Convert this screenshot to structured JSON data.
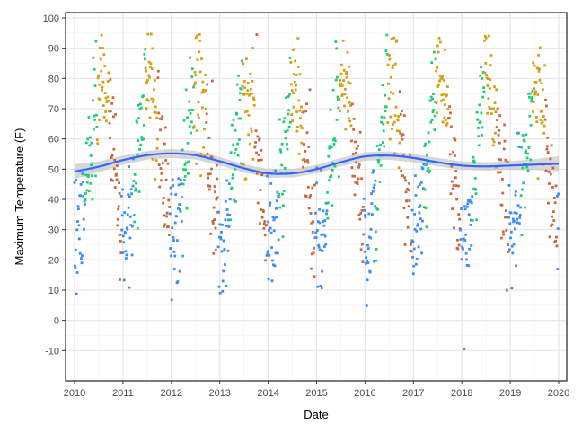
{
  "chart_data": {
    "type": "scatter",
    "title": "",
    "xlabel": "Date",
    "ylabel": "Maximum Temperature (F)",
    "xlim": [
      2009.97,
      2020.0
    ],
    "ylim": [
      -20,
      100
    ],
    "x_ticks": [
      "2010",
      "2011",
      "2012",
      "2013",
      "2014",
      "2015",
      "2016",
      "2017",
      "2018",
      "2019",
      "2020"
    ],
    "y_ticks": [
      "-10",
      "0",
      "10",
      "20",
      "30",
      "40",
      "50",
      "60",
      "70",
      "80",
      "90",
      "100"
    ],
    "grid": true,
    "legend": "none",
    "season_colors": {
      "winter": "#3a8ef6",
      "spring": "#22cc77",
      "summer": "#d4a017",
      "fall": "#c8673a"
    },
    "scatter_model": {
      "note": "daily points per season",
      "seasonal_mean_min": 28,
      "seasonal_mean_max": 78,
      "spread": 10
    },
    "smooth_trend": {
      "color": "#3366ff",
      "band_color": "#bdbdbd",
      "x": [
        2010.0,
        2010.5,
        2011.0,
        2011.5,
        2012.0,
        2012.5,
        2013.0,
        2013.5,
        2014.0,
        2014.5,
        2015.0,
        2015.5,
        2016.0,
        2016.5,
        2017.0,
        2017.5,
        2018.0,
        2018.5,
        2019.0,
        2019.5,
        2020.0
      ],
      "y": [
        49.2,
        50.8,
        53.0,
        54.6,
        55.2,
        54.6,
        52.6,
        50.3,
        48.6,
        48.6,
        50.0,
        52.3,
        54.2,
        54.5,
        53.7,
        52.3,
        51.2,
        50.9,
        51.2,
        51.5,
        51.8
      ],
      "band": [
        2.5,
        1.8,
        1.5,
        1.4,
        1.5,
        1.4,
        1.4,
        1.4,
        1.4,
        1.4,
        1.4,
        1.4,
        1.4,
        1.4,
        1.4,
        1.4,
        1.4,
        1.4,
        1.5,
        1.8,
        2.5
      ]
    }
  }
}
